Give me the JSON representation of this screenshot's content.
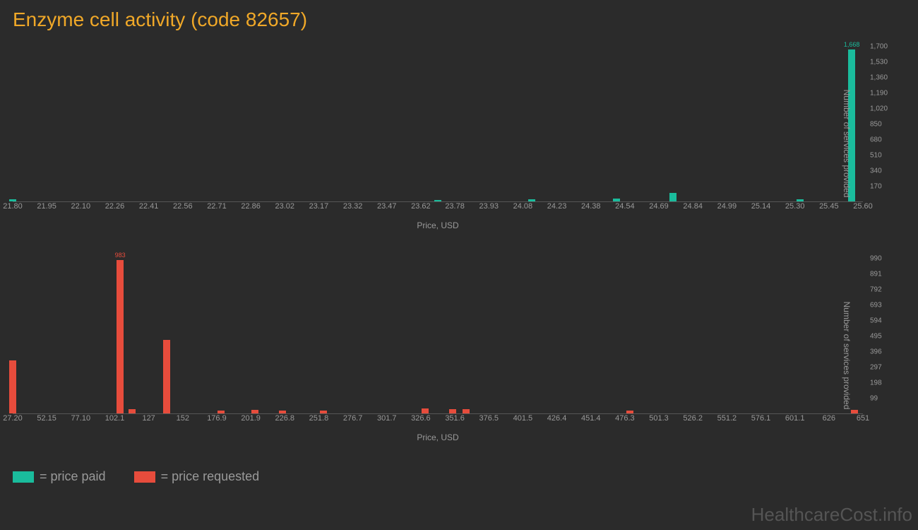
{
  "title": "Enzyme cell activity (code 82657)",
  "watermark": "HealthcareCost.info",
  "colors": {
    "paid": "#1abc9c",
    "requested": "#e74c3c",
    "background": "#2b2b2b",
    "title": "#f0a828",
    "text": "#999",
    "axis": "#555"
  },
  "chart1": {
    "type": "bar",
    "x_label": "Price, USD",
    "y_label": "Number of services provided",
    "x_min": 21.8,
    "x_max": 25.6,
    "y_max": 1700,
    "x_ticks": [
      "21.80",
      "21.95",
      "22.10",
      "22.26",
      "22.41",
      "22.56",
      "22.71",
      "22.86",
      "23.02",
      "23.17",
      "23.32",
      "23.47",
      "23.62",
      "23.78",
      "23.93",
      "24.08",
      "24.23",
      "24.38",
      "24.54",
      "24.69",
      "24.84",
      "24.99",
      "25.14",
      "25.30",
      "25.45",
      "25.60"
    ],
    "y_ticks": [
      170,
      340,
      510,
      680,
      850,
      1020,
      1190,
      1360,
      1530,
      1700
    ],
    "bars": [
      {
        "x": 21.8,
        "y": 25
      },
      {
        "x": 23.7,
        "y": 18
      },
      {
        "x": 24.12,
        "y": 22
      },
      {
        "x": 24.5,
        "y": 28
      },
      {
        "x": 24.75,
        "y": 95
      },
      {
        "x": 25.32,
        "y": 20
      },
      {
        "x": 25.55,
        "y": 1668,
        "label": "1,668"
      }
    ],
    "bar_color": "#1abc9c"
  },
  "chart2": {
    "type": "bar",
    "x_label": "Price, USD",
    "y_label": "Number of services provided",
    "x_min": 27.2,
    "x_max": 651,
    "y_max": 990,
    "x_ticks": [
      "27.20",
      "52.15",
      "77.10",
      "102.1",
      "127",
      "152",
      "176.9",
      "201.9",
      "226.8",
      "251.8",
      "276.7",
      "301.7",
      "326.6",
      "351.6",
      "376.5",
      "401.5",
      "426.4",
      "451.4",
      "476.3",
      "501.3",
      "526.2",
      "551.2",
      "576.1",
      "601.1",
      "626",
      "651"
    ],
    "y_ticks": [
      99,
      198,
      297,
      396,
      495,
      594,
      693,
      792,
      891,
      990
    ],
    "bars": [
      {
        "x": 27.2,
        "y": 340
      },
      {
        "x": 106,
        "y": 983,
        "label": "983"
      },
      {
        "x": 115,
        "y": 25
      },
      {
        "x": 140,
        "y": 470
      },
      {
        "x": 180,
        "y": 20
      },
      {
        "x": 205,
        "y": 22
      },
      {
        "x": 225,
        "y": 18
      },
      {
        "x": 255,
        "y": 20
      },
      {
        "x": 330,
        "y": 30
      },
      {
        "x": 350,
        "y": 25
      },
      {
        "x": 360,
        "y": 28
      },
      {
        "x": 480,
        "y": 18
      },
      {
        "x": 645,
        "y": 22
      }
    ],
    "bar_color": "#e74c3c"
  },
  "legend": {
    "paid_label": "= price paid",
    "requested_label": "= price requested"
  }
}
